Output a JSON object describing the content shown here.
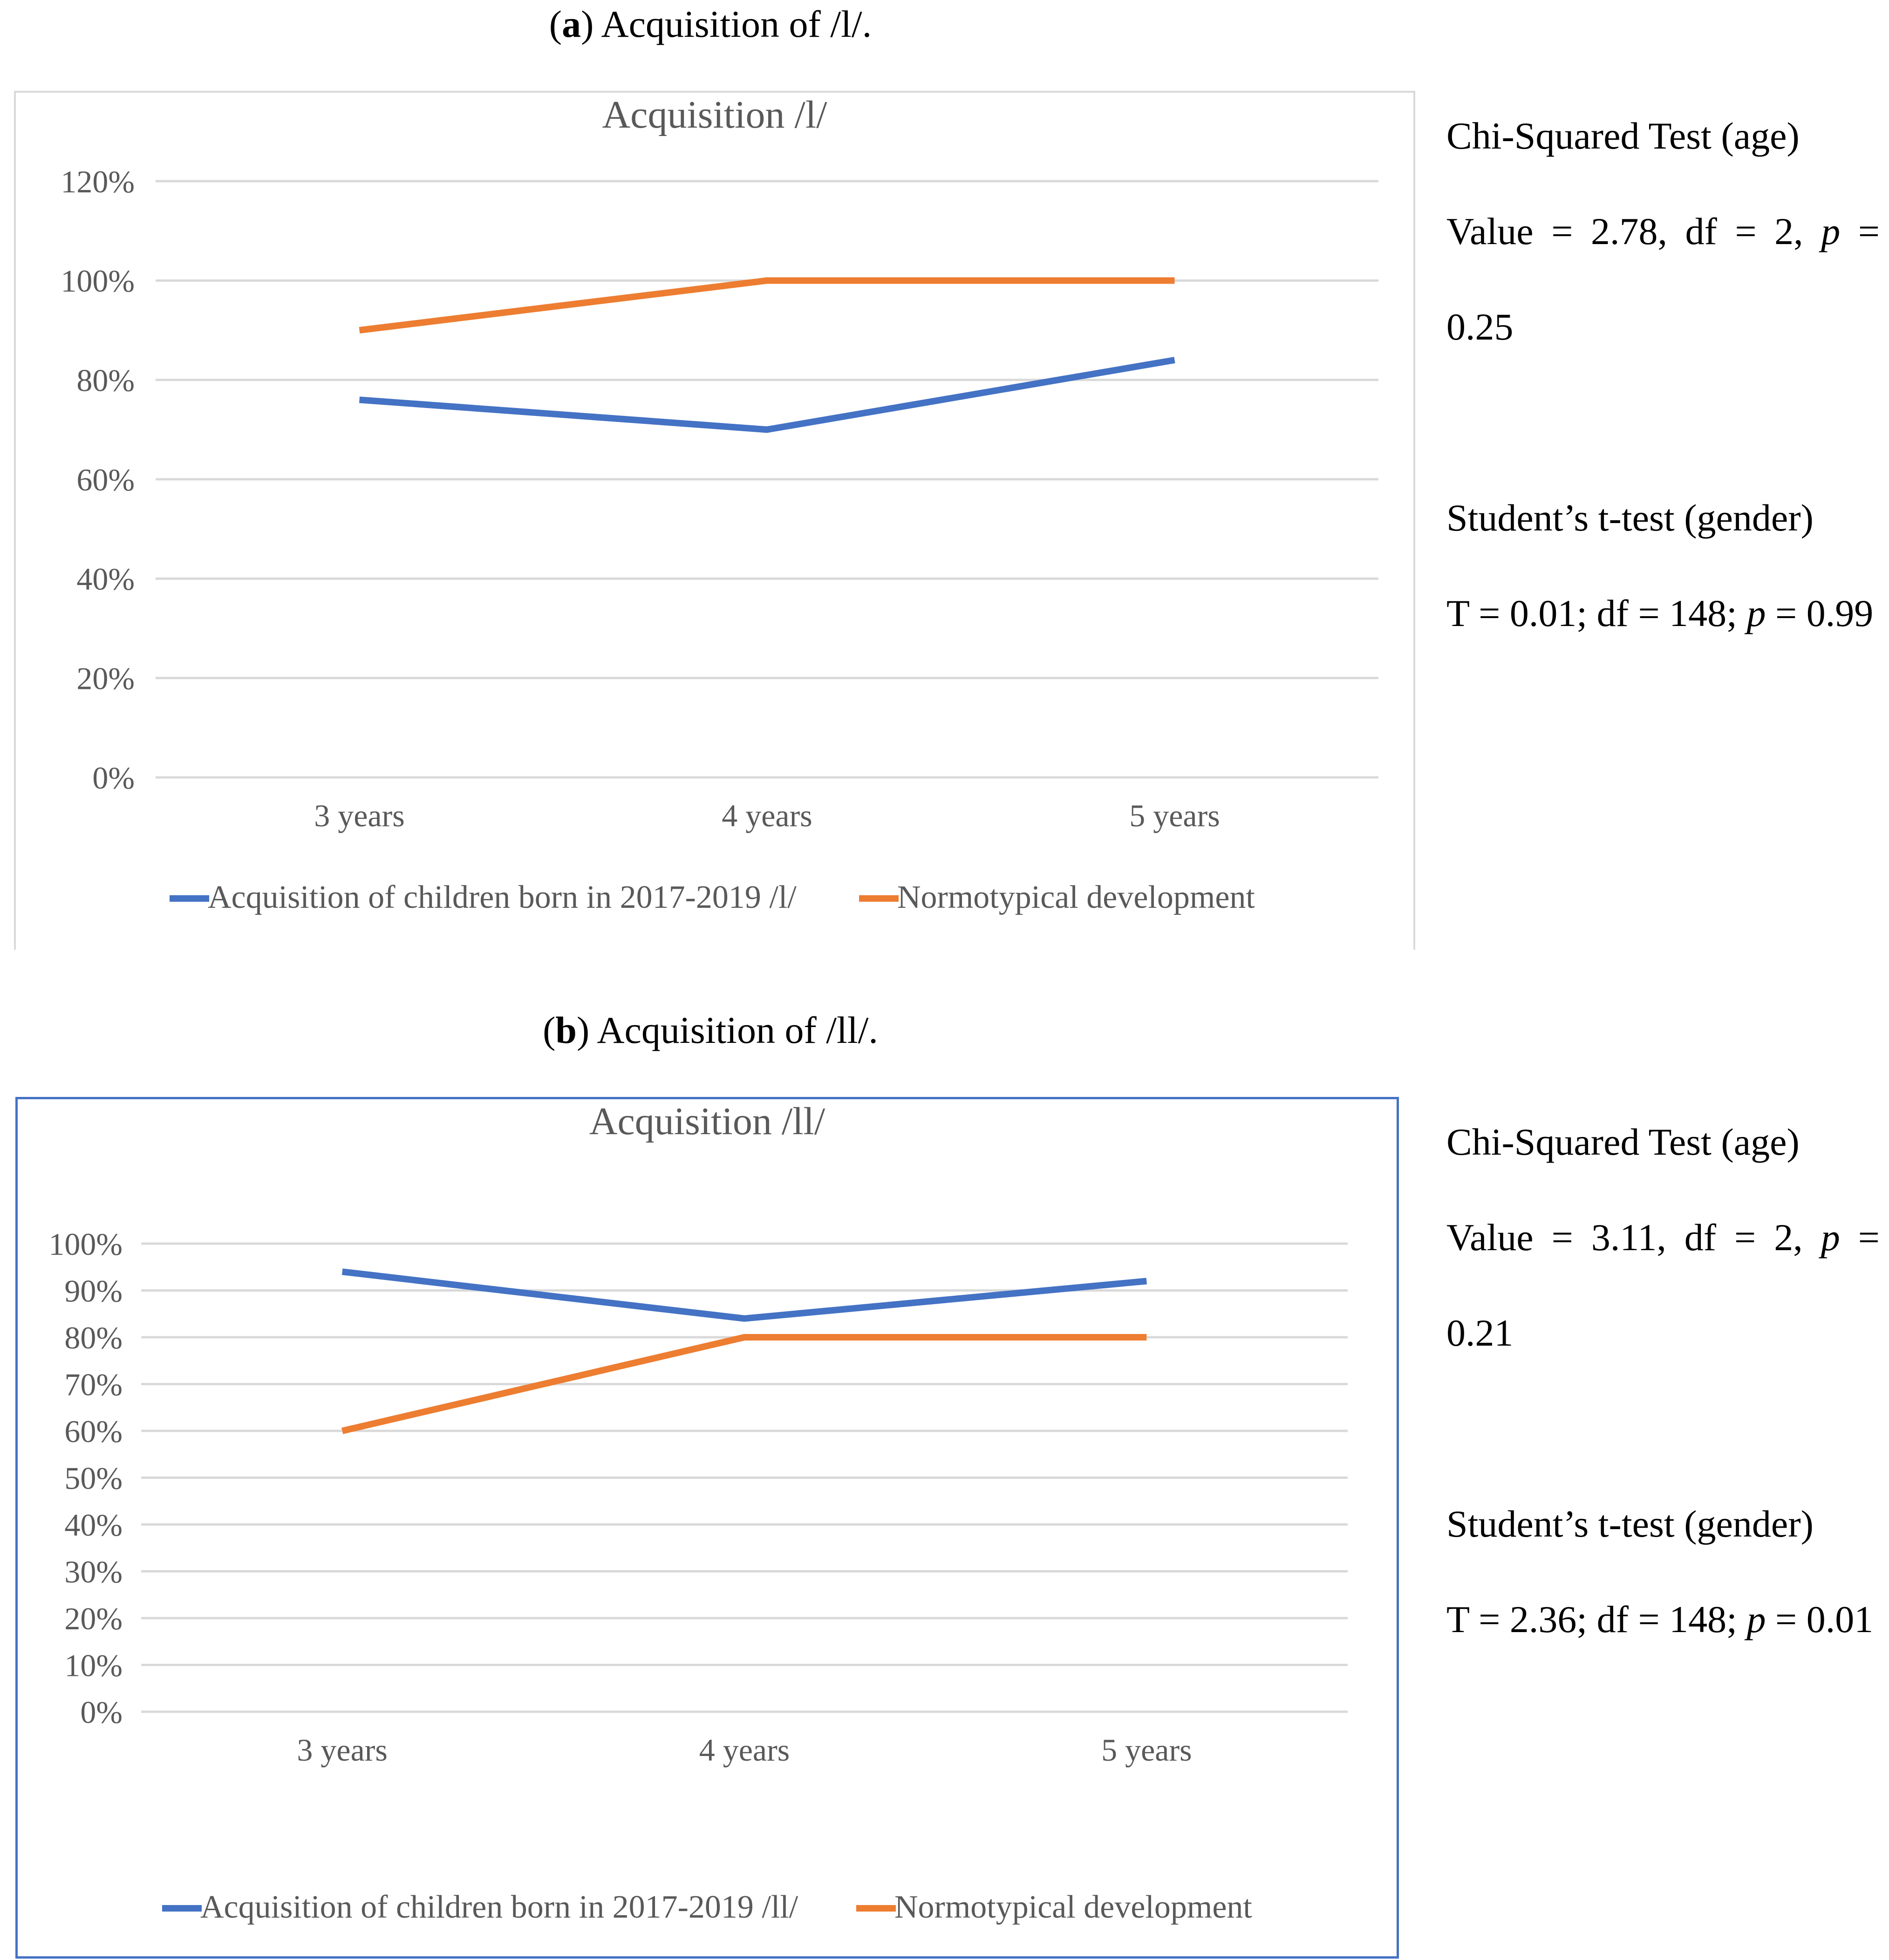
{
  "panel_a": {
    "caption_letter": "a",
    "caption_text": "Acquisition of /l/.",
    "stats": {
      "chi_title": "Chi-Squared Test (age)",
      "chi_value_words": [
        "Value",
        "=",
        "2.78,",
        "df",
        "=",
        "2,",
        "p",
        "="
      ],
      "chi_p_cont": "0.25",
      "t_title": "Student’s t-test (gender)",
      "t_prefix": "T = 0.01; df = 148; ",
      "t_p_label": "p",
      "t_p_value": " = 0.99"
    }
  },
  "panel_b": {
    "caption_letter": "b",
    "caption_text": "Acquisition of /ll/.",
    "stats": {
      "chi_title": "Chi-Squared Test (age)",
      "chi_value_words": [
        "Value",
        "=",
        "3.11,",
        "df",
        "=",
        "2,",
        "p",
        "="
      ],
      "chi_p_cont": "0.21",
      "t_title": "Student’s t-test (gender)",
      "t_prefix": "T = 2.36; df = 148; ",
      "t_p_label": "p",
      "t_p_value": " = 0.01"
    }
  },
  "chart_data": [
    {
      "type": "line",
      "title": "Acquisition /l/",
      "categories": [
        "3 years",
        "4 years",
        "5 years"
      ],
      "yticks": [
        "0%",
        "20%",
        "40%",
        "60%",
        "80%",
        "100%",
        "120%"
      ],
      "ylim": [
        0,
        120
      ],
      "xlabel": "",
      "ylabel": "",
      "grid": true,
      "legend_position": "bottom",
      "series": [
        {
          "name": "Acquisition of children born in 2017-2019 /l/",
          "color": "#4472c4",
          "values": [
            76,
            70,
            84
          ]
        },
        {
          "name": "Normotypical development",
          "color": "#ed7d31",
          "values": [
            90,
            100,
            100
          ]
        }
      ]
    },
    {
      "type": "line",
      "title": "Acquisition /ll/",
      "categories": [
        "3 years",
        "4 years",
        "5 years"
      ],
      "yticks": [
        "0%",
        "10%",
        "20%",
        "30%",
        "40%",
        "50%",
        "60%",
        "70%",
        "80%",
        "90%",
        "100%"
      ],
      "ylim": [
        0,
        100
      ],
      "xlabel": "",
      "ylabel": "",
      "grid": true,
      "legend_position": "bottom",
      "series": [
        {
          "name": "Acquisition of children born in 2017-2019 /ll/",
          "color": "#4472c4",
          "values": [
            94,
            84,
            92
          ]
        },
        {
          "name": "Normotypical development",
          "color": "#ed7d31",
          "values": [
            60,
            80,
            80
          ]
        }
      ]
    }
  ]
}
